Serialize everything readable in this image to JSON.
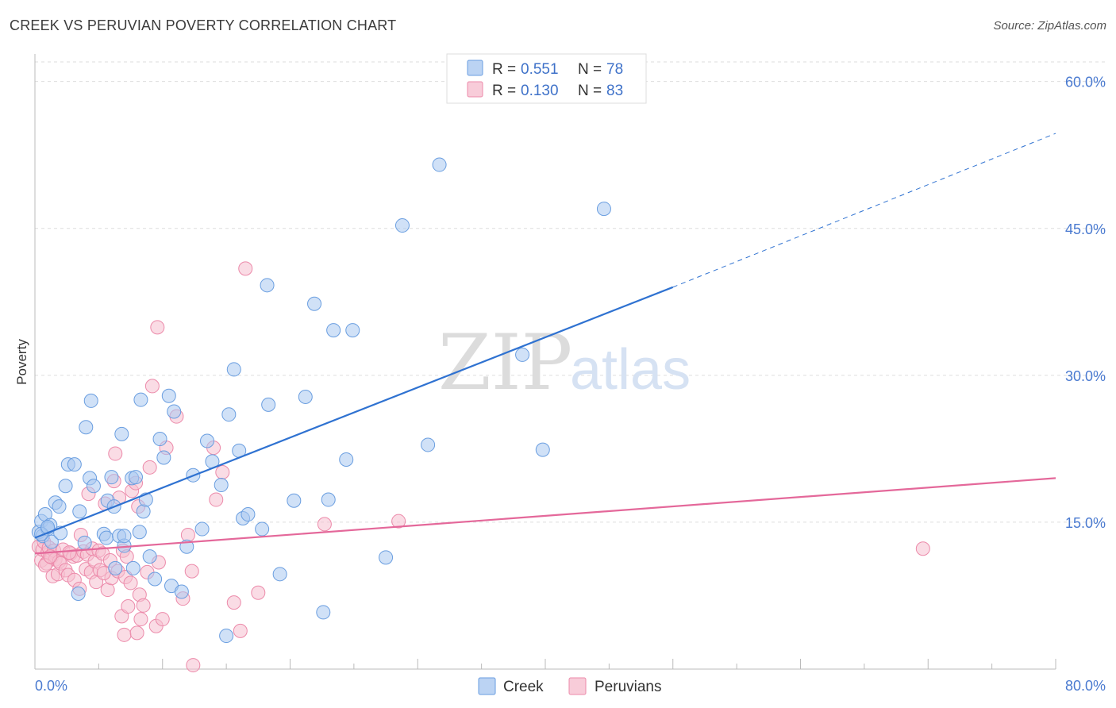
{
  "title": "CREEK VS PERUVIAN POVERTY CORRELATION CHART",
  "source": "Source: ZipAtlas.com",
  "watermark": {
    "zip": "ZIP",
    "atlas": "atlas"
  },
  "colors": {
    "creek": "#6a9ee0",
    "creek_fill": "#aac8f0",
    "creek_line": "#2f72d1",
    "peruvians": "#ec8aaa",
    "peruvians_fill": "#f6bfd0",
    "peruvians_line": "#e4689a",
    "tick_text": "#4a7ad0",
    "grid": "#dddddd"
  },
  "legend": {
    "rows": [
      {
        "r_label": "R = ",
        "r_value": "0.551",
        "n_label": "N = ",
        "n_value": "78"
      },
      {
        "r_label": "R = ",
        "r_value": "0.130",
        "n_label": "N = ",
        "n_value": "83"
      }
    ]
  },
  "bottom_legend": [
    "Creek",
    "Peruvians"
  ],
  "chart_data": {
    "type": "scatter",
    "title": "CREEK VS PERUVIAN POVERTY CORRELATION CHART",
    "xlabel": "",
    "ylabel": "Poverty",
    "xlim": [
      0,
      80
    ],
    "ylim": [
      0,
      62
    ],
    "x_tick_labels": [
      "0.0%",
      "80.0%"
    ],
    "y_ticks": [
      15,
      30,
      45,
      60
    ],
    "y_tick_labels": [
      "15.0%",
      "30.0%",
      "45.0%",
      "60.0%"
    ],
    "grid": true,
    "legend_position": "top-center",
    "series": [
      {
        "name": "Creek",
        "r": 0.551,
        "n": 78,
        "trend": {
          "x0": 0,
          "y0": 13.4,
          "x1": 50,
          "y1": 39.0,
          "dashed_to_x": 80,
          "dashed_to_y": 54.7
        },
        "points": [
          [
            0.3,
            14.0
          ],
          [
            0.5,
            15.1
          ],
          [
            0.6,
            13.6
          ],
          [
            0.8,
            15.8
          ],
          [
            1.0,
            14.3
          ],
          [
            1.2,
            14.7
          ],
          [
            1.3,
            13.0
          ],
          [
            1.6,
            17.0
          ],
          [
            1.9,
            16.6
          ],
          [
            2.0,
            13.9
          ],
          [
            2.4,
            18.7
          ],
          [
            2.6,
            20.9
          ],
          [
            3.1,
            20.9
          ],
          [
            3.5,
            16.1
          ],
          [
            3.9,
            12.9
          ],
          [
            4.0,
            24.7
          ],
          [
            4.3,
            19.5
          ],
          [
            4.4,
            27.4
          ],
          [
            4.6,
            18.7
          ],
          [
            5.4,
            13.8
          ],
          [
            5.6,
            13.4
          ],
          [
            5.7,
            17.2
          ],
          [
            6.0,
            19.6
          ],
          [
            6.2,
            16.6
          ],
          [
            6.3,
            10.3
          ],
          [
            6.6,
            13.6
          ],
          [
            6.8,
            24.0
          ],
          [
            7.0,
            12.6
          ],
          [
            7.0,
            13.6
          ],
          [
            7.6,
            19.5
          ],
          [
            7.7,
            10.3
          ],
          [
            7.9,
            19.6
          ],
          [
            8.2,
            14.0
          ],
          [
            8.3,
            27.5
          ],
          [
            8.5,
            16.1
          ],
          [
            8.7,
            17.3
          ],
          [
            9.0,
            11.5
          ],
          [
            9.4,
            9.2
          ],
          [
            9.8,
            23.5
          ],
          [
            10.1,
            21.6
          ],
          [
            10.5,
            27.9
          ],
          [
            10.7,
            8.5
          ],
          [
            10.9,
            26.3
          ],
          [
            11.5,
            7.9
          ],
          [
            11.9,
            12.5
          ],
          [
            12.4,
            19.8
          ],
          [
            13.1,
            14.3
          ],
          [
            13.5,
            23.3
          ],
          [
            13.9,
            21.2
          ],
          [
            14.6,
            18.8
          ],
          [
            15.0,
            3.4
          ],
          [
            15.2,
            26.0
          ],
          [
            15.6,
            30.6
          ],
          [
            16.0,
            22.3
          ],
          [
            16.3,
            15.4
          ],
          [
            16.7,
            15.8
          ],
          [
            17.8,
            14.3
          ],
          [
            18.2,
            39.2
          ],
          [
            18.3,
            27.0
          ],
          [
            19.2,
            9.7
          ],
          [
            20.3,
            17.2
          ],
          [
            21.2,
            27.8
          ],
          [
            21.9,
            37.3
          ],
          [
            22.6,
            5.8
          ],
          [
            23.0,
            17.3
          ],
          [
            23.4,
            34.6
          ],
          [
            24.4,
            21.4
          ],
          [
            24.9,
            34.6
          ],
          [
            27.5,
            11.4
          ],
          [
            28.8,
            45.3
          ],
          [
            30.8,
            22.9
          ],
          [
            31.7,
            51.5
          ],
          [
            38.2,
            32.1
          ],
          [
            39.8,
            22.4
          ],
          [
            44.6,
            47.0
          ],
          [
            0.5,
            13.8
          ],
          [
            1.0,
            14.5
          ],
          [
            3.4,
            7.7
          ]
        ]
      },
      {
        "name": "Peruvians",
        "r": 0.13,
        "n": 83,
        "trend": {
          "x0": 0,
          "y0": 11.8,
          "x1": 80,
          "y1": 19.5
        },
        "points": [
          [
            0.3,
            12.5
          ],
          [
            0.5,
            11.1
          ],
          [
            0.6,
            12.2
          ],
          [
            0.7,
            13.0
          ],
          [
            0.9,
            10.8
          ],
          [
            1.0,
            11.9
          ],
          [
            1.1,
            12.4
          ],
          [
            1.3,
            11.4
          ],
          [
            1.4,
            9.5
          ],
          [
            1.5,
            12.1
          ],
          [
            1.6,
            11.2
          ],
          [
            1.8,
            9.7
          ],
          [
            1.9,
            11.0
          ],
          [
            2.0,
            10.8
          ],
          [
            2.2,
            12.2
          ],
          [
            2.4,
            10.1
          ],
          [
            2.6,
            9.6
          ],
          [
            2.8,
            11.8
          ],
          [
            3.0,
            11.5
          ],
          [
            3.1,
            9.1
          ],
          [
            3.3,
            11.6
          ],
          [
            3.5,
            8.2
          ],
          [
            3.6,
            13.7
          ],
          [
            3.8,
            12.0
          ],
          [
            4.0,
            10.2
          ],
          [
            4.1,
            11.7
          ],
          [
            4.2,
            17.9
          ],
          [
            4.4,
            9.9
          ],
          [
            4.5,
            12.3
          ],
          [
            4.7,
            11.0
          ],
          [
            4.8,
            8.9
          ],
          [
            5.0,
            12.1
          ],
          [
            5.1,
            10.1
          ],
          [
            5.3,
            11.8
          ],
          [
            5.5,
            16.9
          ],
          [
            5.7,
            8.1
          ],
          [
            5.9,
            11.1
          ],
          [
            6.0,
            9.3
          ],
          [
            6.2,
            19.2
          ],
          [
            6.3,
            22.0
          ],
          [
            6.5,
            10.0
          ],
          [
            6.6,
            17.5
          ],
          [
            6.8,
            5.4
          ],
          [
            6.9,
            12.1
          ],
          [
            7.0,
            3.5
          ],
          [
            7.1,
            9.4
          ],
          [
            7.2,
            11.5
          ],
          [
            7.3,
            6.4
          ],
          [
            7.5,
            8.8
          ],
          [
            7.6,
            18.2
          ],
          [
            7.9,
            19.0
          ],
          [
            8.0,
            3.7
          ],
          [
            8.1,
            16.6
          ],
          [
            8.2,
            7.6
          ],
          [
            8.3,
            5.1
          ],
          [
            8.5,
            6.5
          ],
          [
            8.8,
            9.9
          ],
          [
            9.0,
            20.6
          ],
          [
            9.2,
            28.9
          ],
          [
            9.5,
            4.4
          ],
          [
            9.6,
            34.9
          ],
          [
            9.7,
            10.9
          ],
          [
            10.0,
            5.1
          ],
          [
            10.3,
            22.6
          ],
          [
            11.1,
            25.8
          ],
          [
            11.6,
            7.2
          ],
          [
            12.0,
            13.7
          ],
          [
            12.3,
            10.0
          ],
          [
            12.4,
            0.4
          ],
          [
            14.0,
            22.6
          ],
          [
            14.2,
            17.3
          ],
          [
            14.7,
            20.1
          ],
          [
            15.6,
            6.8
          ],
          [
            16.1,
            3.9
          ],
          [
            16.5,
            40.9
          ],
          [
            17.5,
            7.8
          ],
          [
            22.7,
            14.8
          ],
          [
            28.5,
            15.1
          ],
          [
            69.6,
            12.3
          ],
          [
            0.8,
            10.6
          ],
          [
            1.2,
            11.5
          ],
          [
            2.7,
            11.9
          ],
          [
            5.4,
            9.8
          ]
        ]
      }
    ]
  }
}
